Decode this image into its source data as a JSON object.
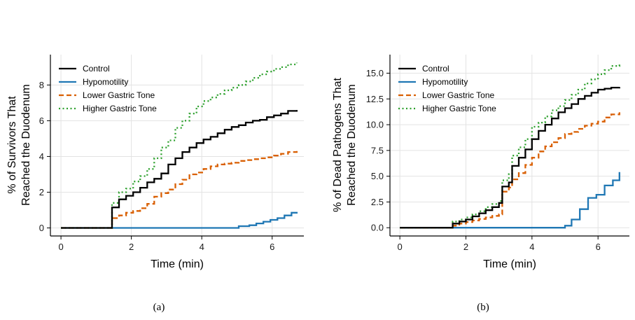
{
  "colors": {
    "control": "#000000",
    "hypomotility": "#1f77b4",
    "lower": "#d95f02",
    "higher": "#2ca02c",
    "grid": "#e3e3e3",
    "axis": "#000000"
  },
  "chart_data": [
    {
      "type": "line",
      "caption": "(a)",
      "xlabel": "Time (min)",
      "ylabel": [
        "% of Survivors That",
        "Reached the Duodenum"
      ],
      "xlim": [
        -0.3,
        6.9
      ],
      "ylim": [
        -0.45,
        9.7
      ],
      "xticks": [
        0,
        2,
        4,
        6
      ],
      "yticks": [
        0,
        2,
        4,
        6,
        8
      ],
      "ytick_labels": [
        "0",
        "2",
        "4",
        "6",
        "8"
      ],
      "grid": true,
      "legend_position": "top-left",
      "series": [
        {
          "name": "Control",
          "style": "solid",
          "color_key": "control",
          "x": [
            0,
            1.38,
            1.45,
            1.65,
            1.85,
            2.05,
            2.25,
            2.45,
            2.65,
            2.85,
            3.05,
            3.25,
            3.45,
            3.65,
            3.85,
            4.05,
            4.25,
            4.45,
            4.65,
            4.85,
            5.05,
            5.25,
            5.45,
            5.65,
            5.85,
            6.05,
            6.25,
            6.45,
            6.7
          ],
          "y": [
            0,
            0,
            1.15,
            1.6,
            1.8,
            2.0,
            2.25,
            2.55,
            2.75,
            3.05,
            3.55,
            3.9,
            4.25,
            4.5,
            4.75,
            4.95,
            5.1,
            5.3,
            5.5,
            5.65,
            5.75,
            5.9,
            6.0,
            6.05,
            6.2,
            6.3,
            6.4,
            6.55,
            6.6
          ]
        },
        {
          "name": "Hypomotility",
          "style": "solid",
          "color_key": "hypomotility",
          "x": [
            0,
            5.0,
            5.05,
            5.35,
            5.55,
            5.75,
            5.95,
            6.15,
            6.35,
            6.55,
            6.7
          ],
          "y": [
            0,
            0,
            0.1,
            0.15,
            0.25,
            0.35,
            0.45,
            0.55,
            0.7,
            0.85,
            0.9
          ]
        },
        {
          "name": "Lower Gastric Tone",
          "style": "dashed",
          "color_key": "lower",
          "x": [
            0,
            1.38,
            1.45,
            1.65,
            1.85,
            2.05,
            2.25,
            2.45,
            2.65,
            2.85,
            3.05,
            3.25,
            3.45,
            3.65,
            3.85,
            4.05,
            4.25,
            4.45,
            4.65,
            4.85,
            5.05,
            5.25,
            5.45,
            5.65,
            5.85,
            6.05,
            6.25,
            6.45,
            6.7
          ],
          "y": [
            0,
            0,
            0.55,
            0.7,
            0.85,
            0.95,
            1.1,
            1.35,
            1.75,
            1.95,
            2.15,
            2.45,
            2.7,
            3.0,
            3.1,
            3.3,
            3.45,
            3.55,
            3.6,
            3.65,
            3.75,
            3.8,
            3.85,
            3.9,
            3.95,
            4.05,
            4.15,
            4.25,
            4.3
          ]
        },
        {
          "name": "Higher Gastric Tone",
          "style": "dotted",
          "color_key": "higher",
          "x": [
            0,
            1.38,
            1.45,
            1.65,
            1.85,
            2.05,
            2.25,
            2.45,
            2.65,
            2.85,
            3.05,
            3.25,
            3.45,
            3.65,
            3.85,
            4.05,
            4.25,
            4.45,
            4.65,
            4.85,
            5.05,
            5.25,
            5.45,
            5.65,
            5.85,
            6.05,
            6.25,
            6.45,
            6.7
          ],
          "y": [
            0,
            0,
            1.4,
            2.0,
            2.2,
            2.6,
            2.9,
            3.3,
            3.9,
            4.5,
            4.9,
            5.6,
            6.0,
            6.4,
            6.8,
            7.1,
            7.3,
            7.5,
            7.7,
            7.85,
            8.0,
            8.2,
            8.4,
            8.6,
            8.75,
            8.9,
            9.0,
            9.15,
            9.25
          ]
        }
      ]
    },
    {
      "type": "line",
      "caption": "(b)",
      "xlabel": "Time (min)",
      "ylabel": [
        "% of Dead Pathogens That",
        "Reached the Duodenum"
      ],
      "xlim": [
        -0.3,
        6.95
      ],
      "ylim": [
        -0.8,
        16.8
      ],
      "xticks": [
        0,
        2,
        4,
        6
      ],
      "yticks": [
        0,
        2.5,
        5,
        7.5,
        10,
        12.5,
        15
      ],
      "ytick_labels": [
        "0.0",
        "2.5",
        "5.0",
        "7.5",
        "10.0",
        "12.5",
        "15.0"
      ],
      "grid": true,
      "legend_position": "top-left",
      "series": [
        {
          "name": "Control",
          "style": "solid",
          "color_key": "control",
          "x": [
            0,
            1.4,
            1.6,
            1.8,
            2.0,
            2.2,
            2.4,
            2.6,
            2.8,
            3.0,
            3.1,
            3.3,
            3.4,
            3.6,
            3.8,
            4.0,
            4.2,
            4.4,
            4.6,
            4.8,
            5.0,
            5.2,
            5.4,
            5.6,
            5.8,
            6.0,
            6.2,
            6.4,
            6.65
          ],
          "y": [
            0,
            0,
            0.4,
            0.6,
            0.8,
            1.1,
            1.4,
            1.7,
            2.0,
            2.4,
            4.0,
            4.4,
            6.0,
            6.8,
            7.6,
            8.6,
            9.4,
            10.0,
            10.6,
            11.2,
            11.6,
            12.0,
            12.5,
            12.8,
            13.1,
            13.4,
            13.5,
            13.6,
            13.65
          ]
        },
        {
          "name": "Hypomotility",
          "style": "solid",
          "color_key": "hypomotility",
          "x": [
            0,
            4.8,
            5.0,
            5.2,
            5.45,
            5.7,
            5.95,
            6.2,
            6.45,
            6.65
          ],
          "y": [
            0,
            0,
            0.2,
            0.8,
            1.8,
            2.9,
            3.2,
            4.1,
            4.6,
            5.4
          ]
        },
        {
          "name": "Lower Gastric Tone",
          "style": "dashed",
          "color_key": "lower",
          "x": [
            0,
            1.4,
            1.6,
            1.8,
            2.0,
            2.2,
            2.4,
            2.6,
            2.8,
            3.0,
            3.1,
            3.3,
            3.4,
            3.6,
            3.8,
            4.0,
            4.2,
            4.4,
            4.6,
            4.8,
            5.0,
            5.2,
            5.4,
            5.6,
            5.8,
            6.0,
            6.2,
            6.4,
            6.65
          ],
          "y": [
            0,
            0,
            0.2,
            0.4,
            0.55,
            0.7,
            0.85,
            1.0,
            1.15,
            1.3,
            3.5,
            3.9,
            4.7,
            5.3,
            6.1,
            6.8,
            7.4,
            7.9,
            8.3,
            8.7,
            9.1,
            9.3,
            9.6,
            9.9,
            10.1,
            10.3,
            10.7,
            11.0,
            11.2
          ]
        },
        {
          "name": "Higher Gastric Tone",
          "style": "dotted",
          "color_key": "higher",
          "x": [
            0,
            1.4,
            1.6,
            1.8,
            2.0,
            2.2,
            2.4,
            2.6,
            2.8,
            3.0,
            3.1,
            3.3,
            3.4,
            3.6,
            3.8,
            4.0,
            4.2,
            4.4,
            4.6,
            4.8,
            5.0,
            5.2,
            5.4,
            5.6,
            5.8,
            6.0,
            6.2,
            6.4,
            6.65
          ],
          "y": [
            0,
            0,
            0.6,
            0.8,
            1.0,
            1.3,
            1.6,
            2.0,
            2.3,
            2.6,
            4.6,
            5.2,
            7.0,
            7.8,
            8.6,
            9.8,
            10.2,
            10.8,
            11.4,
            11.8,
            12.4,
            12.9,
            13.4,
            14.0,
            14.4,
            14.9,
            15.3,
            15.7,
            16.0
          ]
        }
      ]
    }
  ]
}
